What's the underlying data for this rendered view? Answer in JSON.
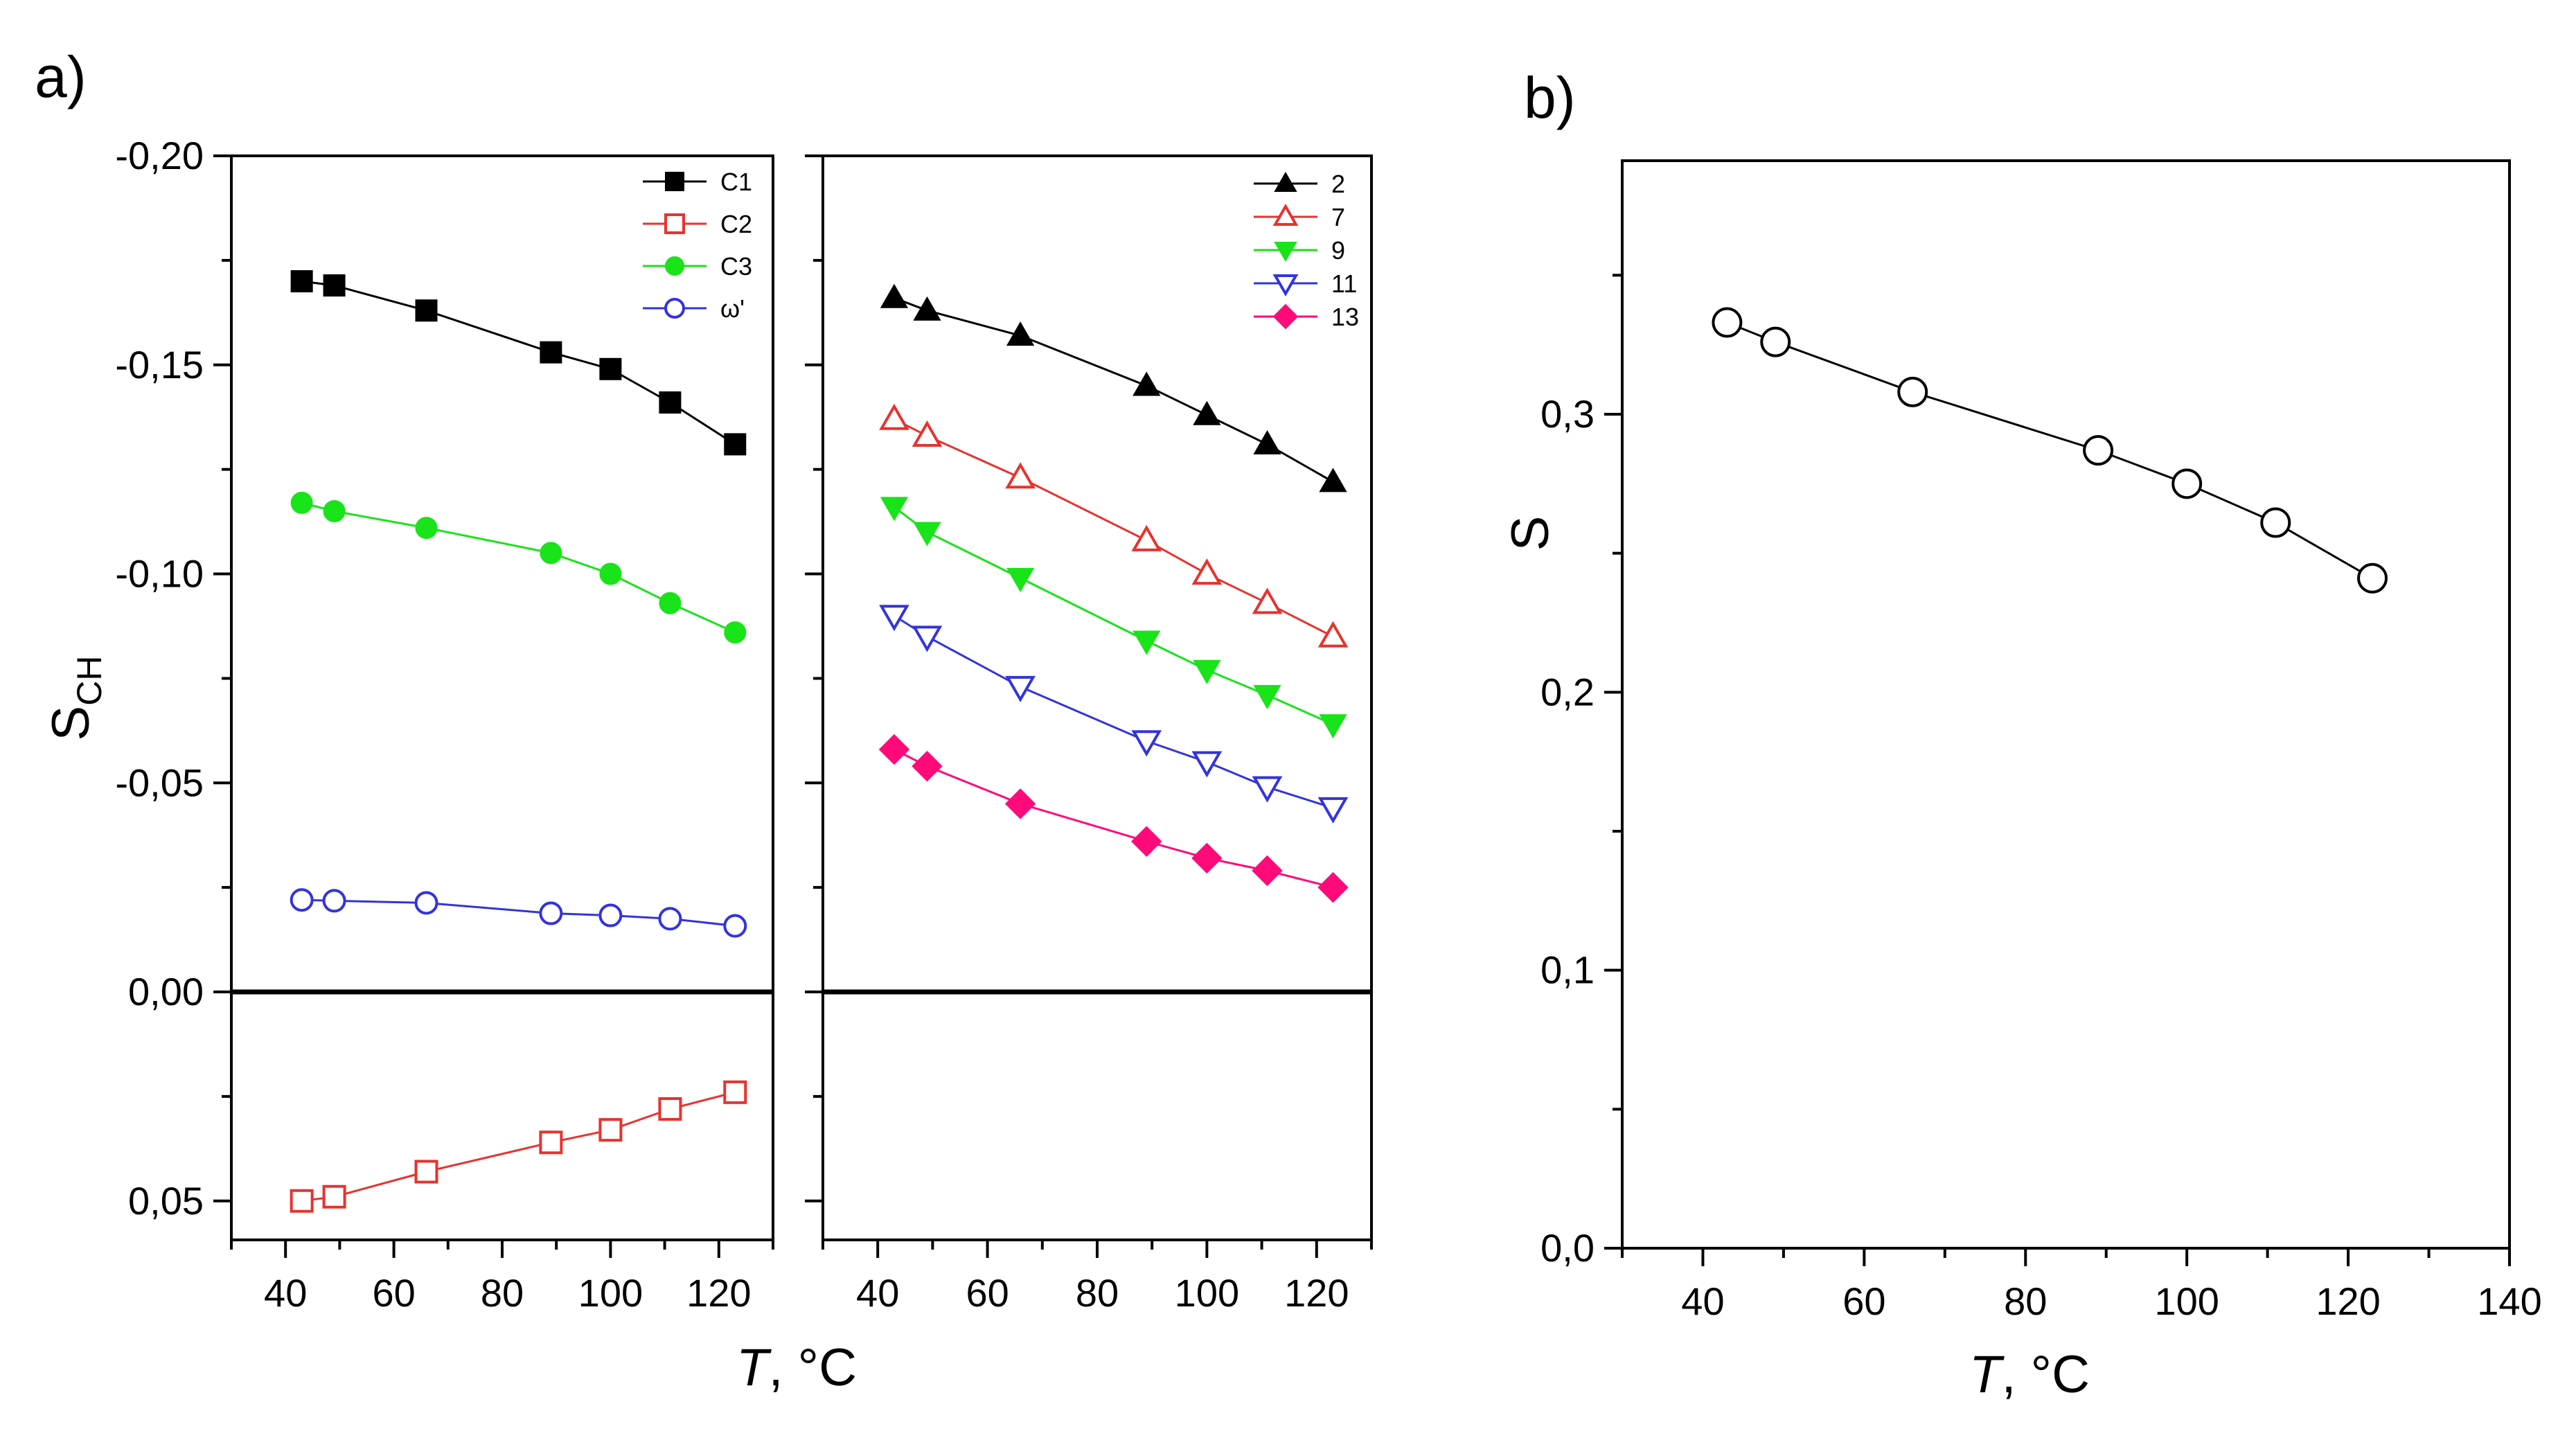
{
  "panels": {
    "a_label": "a)",
    "b_label": "b)"
  },
  "chart_data": [
    {
      "type": "scatter",
      "panel": "a) left",
      "ylabel_main": "S",
      "ylabel_sub": "CH",
      "xlabel_italic": "T",
      "xlabel_rest": ", °C",
      "x_ticks": [
        "40",
        "60",
        "80",
        "100",
        "120"
      ],
      "xlim": [
        30,
        130
      ],
      "y_ticks": [
        "-0,20",
        "-0,15",
        "-0,10",
        "-0,05",
        "0,00",
        "0,05"
      ],
      "ylim_top": -0.2,
      "ylim_bottom": 0.06,
      "y_inverted": true,
      "legend_position": "top-right",
      "series": [
        {
          "name": "C1",
          "marker": "square-filled",
          "color": "#000000",
          "x": [
            43,
            49,
            66,
            89,
            100,
            111,
            123
          ],
          "y": [
            -0.17,
            -0.169,
            -0.163,
            -0.153,
            -0.149,
            -0.141,
            -0.131
          ]
        },
        {
          "name": "C2",
          "marker": "square-open",
          "color": "#e8322e",
          "x": [
            43,
            49,
            66,
            89,
            100,
            111,
            123
          ],
          "y": [
            0.05,
            0.049,
            0.043,
            0.036,
            0.033,
            0.028,
            0.024
          ]
        },
        {
          "name": "C3",
          "marker": "circle-filled",
          "color": "#19e319",
          "x": [
            43,
            49,
            66,
            89,
            100,
            111,
            123
          ],
          "y": [
            -0.117,
            -0.115,
            -0.111,
            -0.105,
            -0.1,
            -0.093,
            -0.086
          ]
        },
        {
          "name": "ω'",
          "marker": "circle-open",
          "color": "#3333dd",
          "x": [
            43,
            49,
            66,
            89,
            100,
            111,
            123
          ],
          "y": [
            -0.022,
            -0.0218,
            -0.0213,
            -0.0188,
            -0.0183,
            -0.0175,
            -0.0158
          ]
        }
      ]
    },
    {
      "type": "scatter",
      "panel": "a) right",
      "xlabel_italic": "T",
      "xlabel_rest": ", °C",
      "x_ticks": [
        "40",
        "60",
        "80",
        "100",
        "120"
      ],
      "xlim": [
        30,
        130
      ],
      "ylim_top": -0.2,
      "ylim_bottom": 0.06,
      "y_inverted": true,
      "legend_position": "top-right",
      "series": [
        {
          "name": "2",
          "marker": "triangle-up-filled",
          "color": "#000000",
          "x": [
            43,
            49,
            66,
            89,
            100,
            111,
            123
          ],
          "y": [
            -0.166,
            -0.163,
            -0.157,
            -0.145,
            -0.138,
            -0.131,
            -0.122
          ]
        },
        {
          "name": "7",
          "marker": "triangle-up-open",
          "color": "#e8322e",
          "x": [
            43,
            49,
            66,
            89,
            100,
            111,
            123
          ],
          "y": [
            -0.137,
            -0.133,
            -0.123,
            -0.108,
            -0.1,
            -0.093,
            -0.085
          ]
        },
        {
          "name": "9",
          "marker": "triangle-down-filled",
          "color": "#19e319",
          "x": [
            43,
            49,
            66,
            89,
            100,
            111,
            123
          ],
          "y": [
            -0.116,
            -0.11,
            -0.099,
            -0.084,
            -0.077,
            -0.071,
            -0.064
          ]
        },
        {
          "name": "11",
          "marker": "triangle-down-open",
          "color": "#3333dd",
          "x": [
            43,
            49,
            66,
            89,
            100,
            111,
            123
          ],
          "y": [
            -0.09,
            -0.085,
            -0.073,
            -0.06,
            -0.055,
            -0.049,
            -0.044
          ]
        },
        {
          "name": "13",
          "marker": "diamond-filled",
          "color": "#ff0a78",
          "x": [
            43,
            49,
            66,
            89,
            100,
            111,
            123
          ],
          "y": [
            -0.058,
            -0.054,
            -0.045,
            -0.036,
            -0.032,
            -0.029,
            -0.025
          ]
        }
      ]
    },
    {
      "type": "scatter",
      "panel": "b)",
      "ylabel": "S",
      "xlabel_italic": "T",
      "xlabel_rest": ", °C",
      "x_ticks": [
        "40",
        "60",
        "80",
        "100",
        "120",
        "140"
      ],
      "xlim": [
        30,
        140
      ],
      "y_ticks": [
        "0,0",
        "0,1",
        "0,2",
        "0,3"
      ],
      "ylim": [
        0,
        0.39
      ],
      "series": [
        {
          "name": "S",
          "marker": "circle-open",
          "color": "#000000",
          "x": [
            43,
            49,
            66,
            89,
            100,
            111,
            123
          ],
          "y": [
            0.333,
            0.326,
            0.308,
            0.287,
            0.275,
            0.261,
            0.241
          ]
        }
      ]
    }
  ]
}
